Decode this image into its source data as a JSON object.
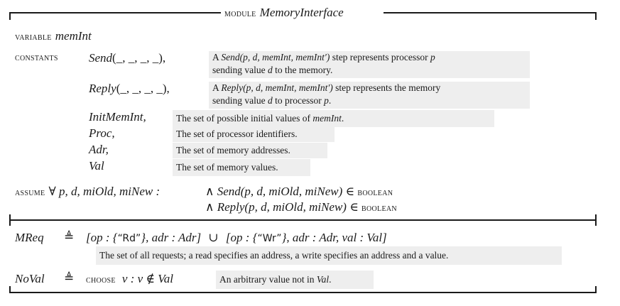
{
  "header": {
    "keyword": "module",
    "name": "MemoryInterface"
  },
  "variable": {
    "keyword": "variable",
    "name": "memInt"
  },
  "constants": {
    "keyword": "constants",
    "send": {
      "name": "Send",
      "args": "(_, _, _, _),",
      "note_line1_pre": "A ",
      "note_line1_op": "Send",
      "note_line1_args": "(p, d, memInt, memInt′)",
      "note_line1_post": " step represents processor ",
      "note_line1_var": "p",
      "note_line2_pre": "sending value ",
      "note_line2_var": "d",
      "note_line2_post": " to the memory."
    },
    "reply": {
      "name": "Reply",
      "args": "(_, _, _, _),",
      "note_line1_pre": "A ",
      "note_line1_op": "Reply",
      "note_line1_args": "(p, d, memInt, memInt′)",
      "note_line1_post": " step represents the memory",
      "note_line2_pre": "sending value ",
      "note_line2_var": "d",
      "note_line2_mid": " to processor ",
      "note_line2_var2": "p",
      "note_line2_post": "."
    },
    "simple": [
      {
        "name": "InitMemInt,",
        "note_pre": "The set of possible initial values of ",
        "note_var": "memInt",
        "note_post": "."
      },
      {
        "name": "Proc,",
        "note_pre": "The set of processor identifiers.",
        "note_var": "",
        "note_post": ""
      },
      {
        "name": "Adr,",
        "note_pre": "The set of memory addresses.",
        "note_var": "",
        "note_post": ""
      },
      {
        "name": "Val",
        "note_pre": "The set of memory values.",
        "note_var": "",
        "note_post": ""
      }
    ]
  },
  "assume": {
    "keyword": "assume",
    "quant": "∀ p, d, miOld, miNew :",
    "line1_and": "∧",
    "line1_expr": "Send(p, d, miOld, miNew) ∈",
    "line2_and": "∧",
    "line2_expr": "Reply(p, d, miOld, miNew) ∈",
    "boolean": "boolean"
  },
  "mreq": {
    "name": "MReq",
    "defeq": "≜",
    "part1": "[op : {",
    "rd": "“Rd”",
    "part2": "}, adr : Adr]",
    "union": "∪",
    "part3": "[op : {",
    "wr": "“Wr”",
    "part4": "}, adr : Adr, val : Val]",
    "note": "The set of all requests; a read specifies an address, a write specifies an address and a value."
  },
  "noval": {
    "name": "NoVal",
    "defeq": "≜",
    "keyword": "choose",
    "expr": "v : v ∉ Val",
    "note_pre": "An arbitrary value not in ",
    "note_var": "Val",
    "note_post": "."
  }
}
